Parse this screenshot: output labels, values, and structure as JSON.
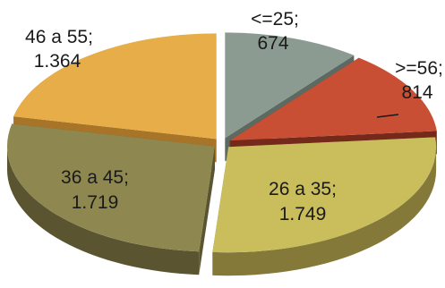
{
  "chart_data": {
    "type": "pie",
    "style": "3d-exploded",
    "categories": [
      "<=25",
      ">=56",
      "26 a 35",
      "36 a 45",
      "46 a 55"
    ],
    "values": [
      674,
      814,
      1749,
      1719,
      1364
    ],
    "value_labels": [
      "674",
      "814",
      "1.749",
      "1.719",
      "1.364"
    ],
    "colors": [
      "#8c9b91",
      "#c84f34",
      "#c9be5b",
      "#8e8850",
      "#e6ad48"
    ],
    "side_colors": [
      "#5d6a62",
      "#74291a",
      "#85793a",
      "#5a5530",
      "#a87428"
    ],
    "labels": [
      {
        "line1": "<=25;",
        "line2": "674"
      },
      {
        "line1": ">=56;",
        "line2": "814"
      },
      {
        "line1": "26 a 35;",
        "line2": "1.749"
      },
      {
        "line1": "36 a 45;",
        "line2": "1.719"
      },
      {
        "line1": "46 a 55;",
        "line2": "1.364"
      }
    ],
    "legend": "none",
    "title": ""
  }
}
